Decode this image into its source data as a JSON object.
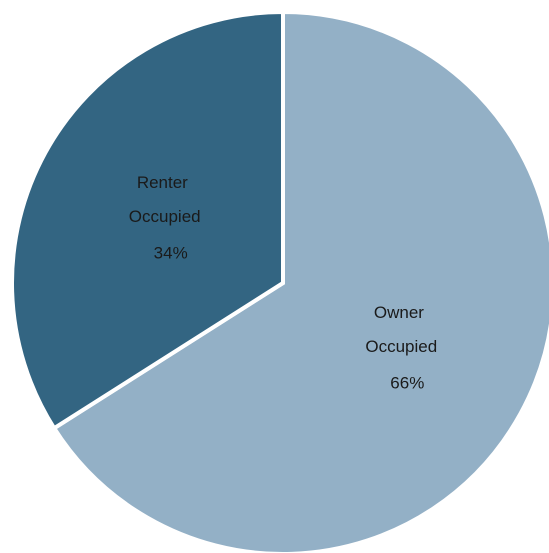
{
  "chart_data": {
    "type": "pie",
    "categories": [
      "Owner Occupied",
      "Renter Occupied"
    ],
    "values": [
      66,
      34
    ],
    "value_labels": [
      "66%",
      "34%"
    ],
    "colors": [
      "#93b0c6",
      "#336582"
    ]
  }
}
